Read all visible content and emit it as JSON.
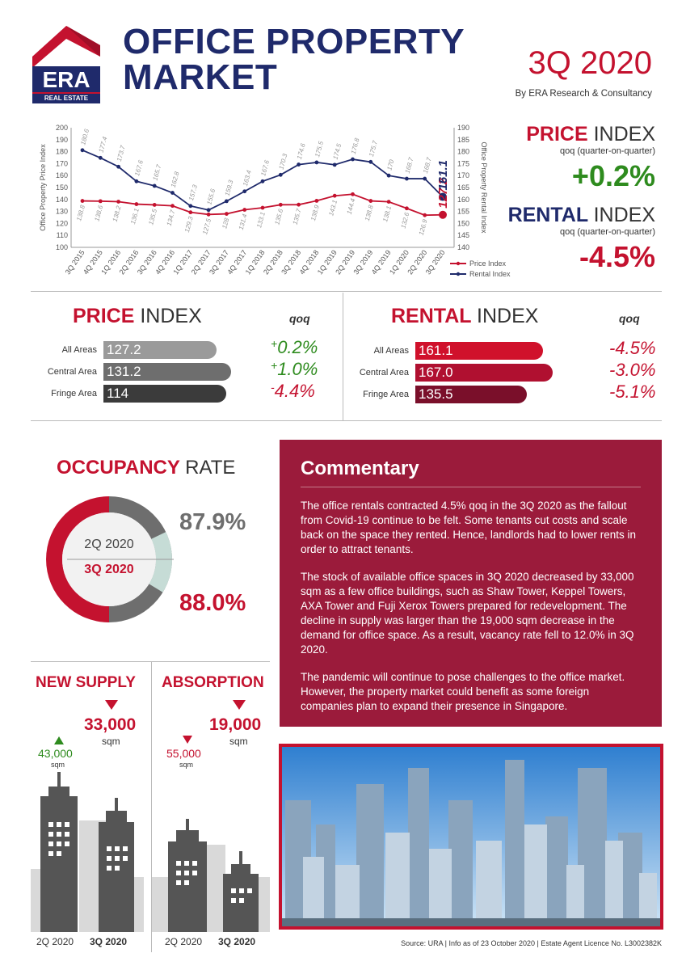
{
  "logo": {
    "brand": "ERA",
    "tagline": "REAL ESTATE"
  },
  "header": {
    "title_line1": "OFFICE PROPERTY",
    "title_line2": "MARKET",
    "quarter": "3Q 2020",
    "byline": "By ERA Research & Consultancy"
  },
  "chart_data": {
    "type": "line",
    "x": [
      "3Q 2015",
      "4Q 2015",
      "1Q 2016",
      "2Q 2016",
      "3Q 2016",
      "4Q 2016",
      "1Q 2017",
      "2Q 2017",
      "3Q 2017",
      "4Q 2017",
      "1Q 2018",
      "2Q 2018",
      "3Q 2018",
      "4Q 2018",
      "1Q 2019",
      "2Q 2019",
      "3Q 2019",
      "4Q 2019",
      "1Q 2020",
      "2Q 2020",
      "3Q 2020"
    ],
    "series": [
      {
        "name": "Price Index",
        "axis": "left",
        "color": "#c4122f",
        "values": [
          138.8,
          138.6,
          138.2,
          136.1,
          135.5,
          134.7,
          129.3,
          127.5,
          128,
          131.4,
          133.1,
          135.6,
          135.7,
          138.9,
          143.1,
          144.4,
          138.8,
          138.1,
          132.6,
          126.9,
          127.2
        ]
      },
      {
        "name": "Rental Index",
        "axis": "right",
        "color": "#1f2a6b",
        "values": [
          180.6,
          177.4,
          173.7,
          167.6,
          165.7,
          162.8,
          157.3,
          155.6,
          159.3,
          163.4,
          167.6,
          170.3,
          174.6,
          175.5,
          174.5,
          176.8,
          175.7,
          170,
          168.7,
          168.7,
          161.1
        ]
      }
    ],
    "ylabel_left": "Office Property Price Index",
    "ylabel_right": "Office Property Rental Index",
    "ylim_left": [
      100,
      200
    ],
    "ylim_right": [
      140,
      190
    ],
    "yticks_left": [
      100,
      110,
      120,
      130,
      140,
      150,
      160,
      170,
      180,
      190,
      200
    ],
    "yticks_right": [
      140,
      145,
      150,
      155,
      160,
      165,
      170,
      175,
      180,
      185,
      190
    ],
    "last_price_label": "127.2",
    "last_rental_label": "161.1",
    "legend": "bottom-right"
  },
  "summary": {
    "price_title_bold": "PRICE",
    "price_title_thin": "INDEX",
    "price_sub": "qoq (quarter-on-quarter)",
    "price_pct": "+0.2%",
    "rental_title_bold": "RENTAL",
    "rental_title_thin": "INDEX",
    "rental_sub": "qoq (quarter-on-quarter)",
    "rental_pct": "-4.5%"
  },
  "price_index": {
    "title_bold": "PRICE",
    "title_thin": "INDEX",
    "qoq_header": "qoq",
    "rows": [
      {
        "label": "All Areas",
        "value": "127.2",
        "qoq_sign": "+",
        "qoq": "0.2%",
        "color": "#9a9a9a"
      },
      {
        "label": "Central Area",
        "value": "131.2",
        "qoq_sign": "+",
        "qoq": "1.0%",
        "color": "#6e6e6e"
      },
      {
        "label": "Fringe Area",
        "value": "114",
        "qoq_sign": "-",
        "qoq": "4.4%",
        "color": "#3b3b3b"
      }
    ]
  },
  "rental_index": {
    "title_bold": "RENTAL",
    "title_thin": "INDEX",
    "qoq_header": "qoq",
    "rows": [
      {
        "label": "All Areas",
        "value": "161.1",
        "qoq": "-4.5%",
        "color": "#d0112b"
      },
      {
        "label": "Central Area",
        "value": "167.0",
        "qoq": "-3.0%",
        "color": "#b01030"
      },
      {
        "label": "Fringe Area",
        "value": "135.5",
        "qoq": "-5.1%",
        "color": "#7a0f2a"
      }
    ]
  },
  "occupancy": {
    "title_bold": "OCCUPANCY",
    "title_thin": "RATE",
    "prev_label": "2Q 2020",
    "prev_value": "87.9%",
    "prev_rate": 87.9,
    "curr_label": "3Q 2020",
    "curr_value": "88.0%",
    "curr_rate": 88.0
  },
  "commentary": {
    "title": "Commentary",
    "paragraphs": [
      "The office rentals contracted 4.5% qoq in the 3Q 2020 as the fallout from Covid-19 continue to be felt. Some tenants cut costs and scale back on the space they rented. Hence, landlords had to lower rents in order to attract tenants.",
      "The stock of available office spaces in 3Q 2020 decreased by 33,000 sqm as a few office buildings, such as Shaw Tower, Keppel Towers, AXA Tower and Fuji Xerox Towers prepared for redevelopment. The decline in supply was larger than the 19,000 sqm decrease in the demand for office space. As a result, vacancy rate fell to 12.0% in 3Q 2020.",
      "The pandemic will continue to pose challenges to the office market. However, the property market could benefit as some foreign companies plan to expand their presence in Singapore."
    ]
  },
  "new_supply": {
    "title": "NEW SUPPLY",
    "prev_value": "43,000",
    "prev_unit": "sqm",
    "curr_value": "33,000",
    "curr_unit": "sqm",
    "prev_label": "2Q 2020",
    "curr_label": "3Q 2020"
  },
  "absorption": {
    "title": "ABSORPTION",
    "prev_value": "55,000",
    "prev_unit": "sqm",
    "curr_value": "19,000",
    "curr_unit": "sqm",
    "prev_label": "2Q 2020",
    "curr_label": "3Q 2020"
  },
  "footer": {
    "source": "Source: URA | Info as of 23 October 2020 | Estate Agent Licence No. L3002382K"
  }
}
